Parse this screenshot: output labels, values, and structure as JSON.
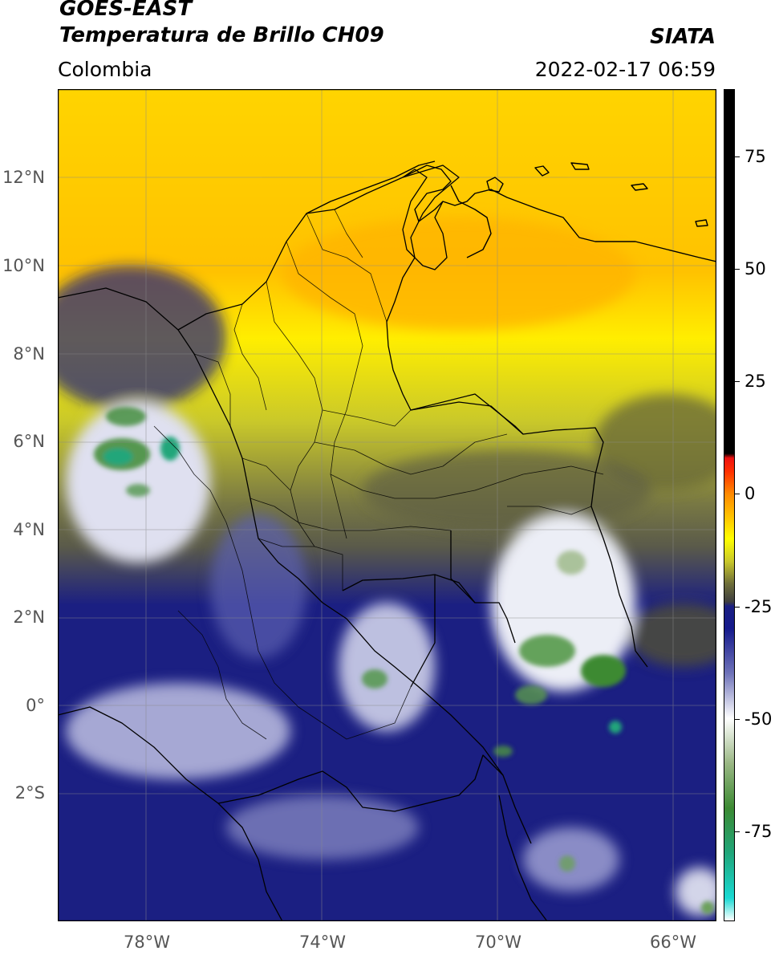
{
  "header": {
    "satellite": "GOES-EAST",
    "product": "Temperatura de Brillo CH09",
    "region": "Colombia",
    "agency": "SIATA",
    "datetime": "2022-02-17 06:59"
  },
  "map": {
    "lon_range": [
      -80,
      -65
    ],
    "lat_range": [
      -4.6,
      14.2
    ],
    "grid": true,
    "lat_ticks": [
      {
        "value": 12,
        "label": "12°N"
      },
      {
        "value": 10,
        "label": "10°N"
      },
      {
        "value": 8,
        "label": "8°N"
      },
      {
        "value": 6,
        "label": "6°N"
      },
      {
        "value": 4,
        "label": "4°N"
      },
      {
        "value": 2,
        "label": "2°N"
      },
      {
        "value": 0,
        "label": "0°"
      },
      {
        "value": -2,
        "label": "2°S"
      }
    ],
    "lon_ticks": [
      {
        "value": -78,
        "label": "78°W"
      },
      {
        "value": -74,
        "label": "74°W"
      },
      {
        "value": -70,
        "label": "70°W"
      },
      {
        "value": -66,
        "label": "66°W"
      }
    ]
  },
  "colorbar": {
    "range": [
      -95,
      90
    ],
    "ticks": [
      {
        "value": 75,
        "label": "75"
      },
      {
        "value": 50,
        "label": "50"
      },
      {
        "value": 25,
        "label": "25"
      },
      {
        "value": 0,
        "label": "0"
      },
      {
        "value": -25,
        "label": "-25"
      },
      {
        "value": -50,
        "label": "-50"
      },
      {
        "value": -75,
        "label": "-75"
      }
    ],
    "stops": [
      {
        "value": -95,
        "color": "#ffffff"
      },
      {
        "value": -90,
        "color": "#19d9d3"
      },
      {
        "value": -80,
        "color": "#20a67a"
      },
      {
        "value": -70,
        "color": "#3c8a33"
      },
      {
        "value": -60,
        "color": "#9ab784"
      },
      {
        "value": -50,
        "color": "#ffffff"
      },
      {
        "value": -40,
        "color": "#6f73b9"
      },
      {
        "value": -30,
        "color": "#151a8c"
      },
      {
        "value": -25,
        "color": "#1b1f82"
      },
      {
        "value": -24,
        "color": "#3f3f3f"
      },
      {
        "value": -20,
        "color": "#6e6e3a"
      },
      {
        "value": -15,
        "color": "#c9c82a"
      },
      {
        "value": -10,
        "color": "#ffff00"
      },
      {
        "value": -5,
        "color": "#ffc200"
      },
      {
        "value": 0,
        "color": "#ff8a00"
      },
      {
        "value": 5,
        "color": "#ff3000"
      },
      {
        "value": 8,
        "color": "#ee1111"
      },
      {
        "value": 9,
        "color": "#000000"
      },
      {
        "value": 90,
        "color": "#000000"
      }
    ]
  }
}
